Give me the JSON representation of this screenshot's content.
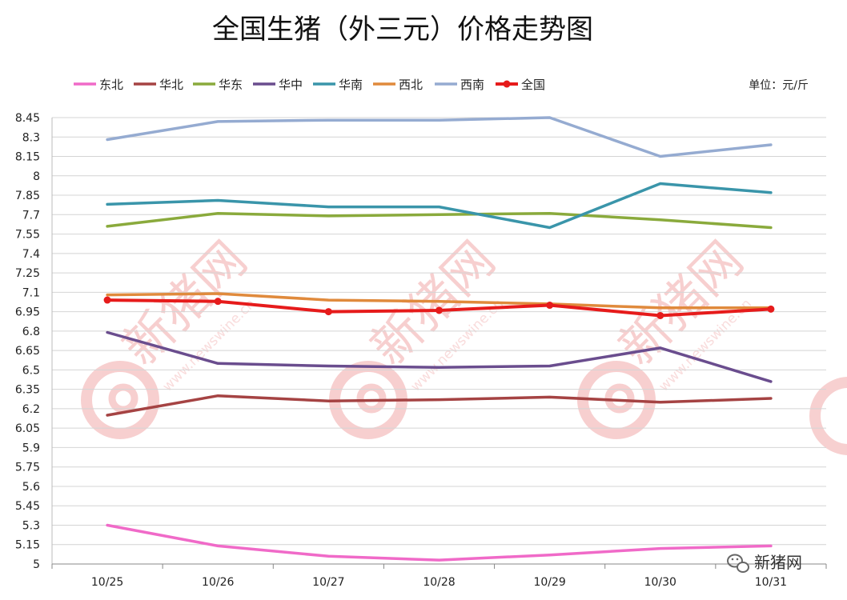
{
  "chart_data": {
    "type": "line",
    "title": "全国生猪（外三元）价格走势图",
    "unit_label": "单位：元/斤",
    "categories": [
      "10/25",
      "10/26",
      "10/27",
      "10/28",
      "10/29",
      "10/30",
      "10/31"
    ],
    "y_ticks": [
      "8.45",
      "8.3",
      "8.15",
      "8",
      "7.85",
      "7.7",
      "7.55",
      "7.4",
      "7.25",
      "7.1",
      "6.95",
      "6.8",
      "6.65",
      "6.5",
      "6.35",
      "6.2",
      "6.05",
      "5.9",
      "5.75",
      "5.6",
      "5.45",
      "5.3",
      "5.15",
      "5"
    ],
    "ylim": [
      5,
      8.45
    ],
    "grid": true,
    "legend_position": "top",
    "series": [
      {
        "name": "东北",
        "color": "#f06ac8",
        "marker": false,
        "values": [
          5.3,
          5.14,
          5.06,
          5.03,
          5.07,
          5.12,
          5.14
        ]
      },
      {
        "name": "华北",
        "color": "#a54343",
        "marker": false,
        "values": [
          6.15,
          6.3,
          6.26,
          6.27,
          6.29,
          6.25,
          6.28
        ]
      },
      {
        "name": "华东",
        "color": "#8aaa3c",
        "marker": false,
        "values": [
          7.61,
          7.71,
          7.69,
          7.7,
          7.71,
          7.66,
          7.6
        ]
      },
      {
        "name": "华中",
        "color": "#6a4d8e",
        "marker": false,
        "values": [
          6.79,
          6.55,
          6.53,
          6.52,
          6.53,
          6.67,
          6.41
        ]
      },
      {
        "name": "华南",
        "color": "#3a95aa",
        "marker": false,
        "values": [
          7.78,
          7.81,
          7.76,
          7.76,
          7.6,
          7.94,
          7.87
        ]
      },
      {
        "name": "西北",
        "color": "#e08a3c",
        "marker": false,
        "values": [
          7.08,
          7.09,
          7.04,
          7.03,
          7.01,
          6.98,
          6.98
        ]
      },
      {
        "name": "西南",
        "color": "#95abd1",
        "marker": false,
        "values": [
          8.28,
          8.42,
          8.43,
          8.43,
          8.45,
          8.15,
          8.24
        ]
      },
      {
        "name": "全国",
        "color": "#e61b1b",
        "marker": true,
        "values": [
          7.04,
          7.03,
          6.95,
          6.96,
          7.0,
          6.92,
          6.97
        ]
      }
    ]
  },
  "watermark": {
    "name": "新猪网",
    "url": "www.newswine.cn"
  },
  "logo": {
    "text": "新猪网"
  }
}
